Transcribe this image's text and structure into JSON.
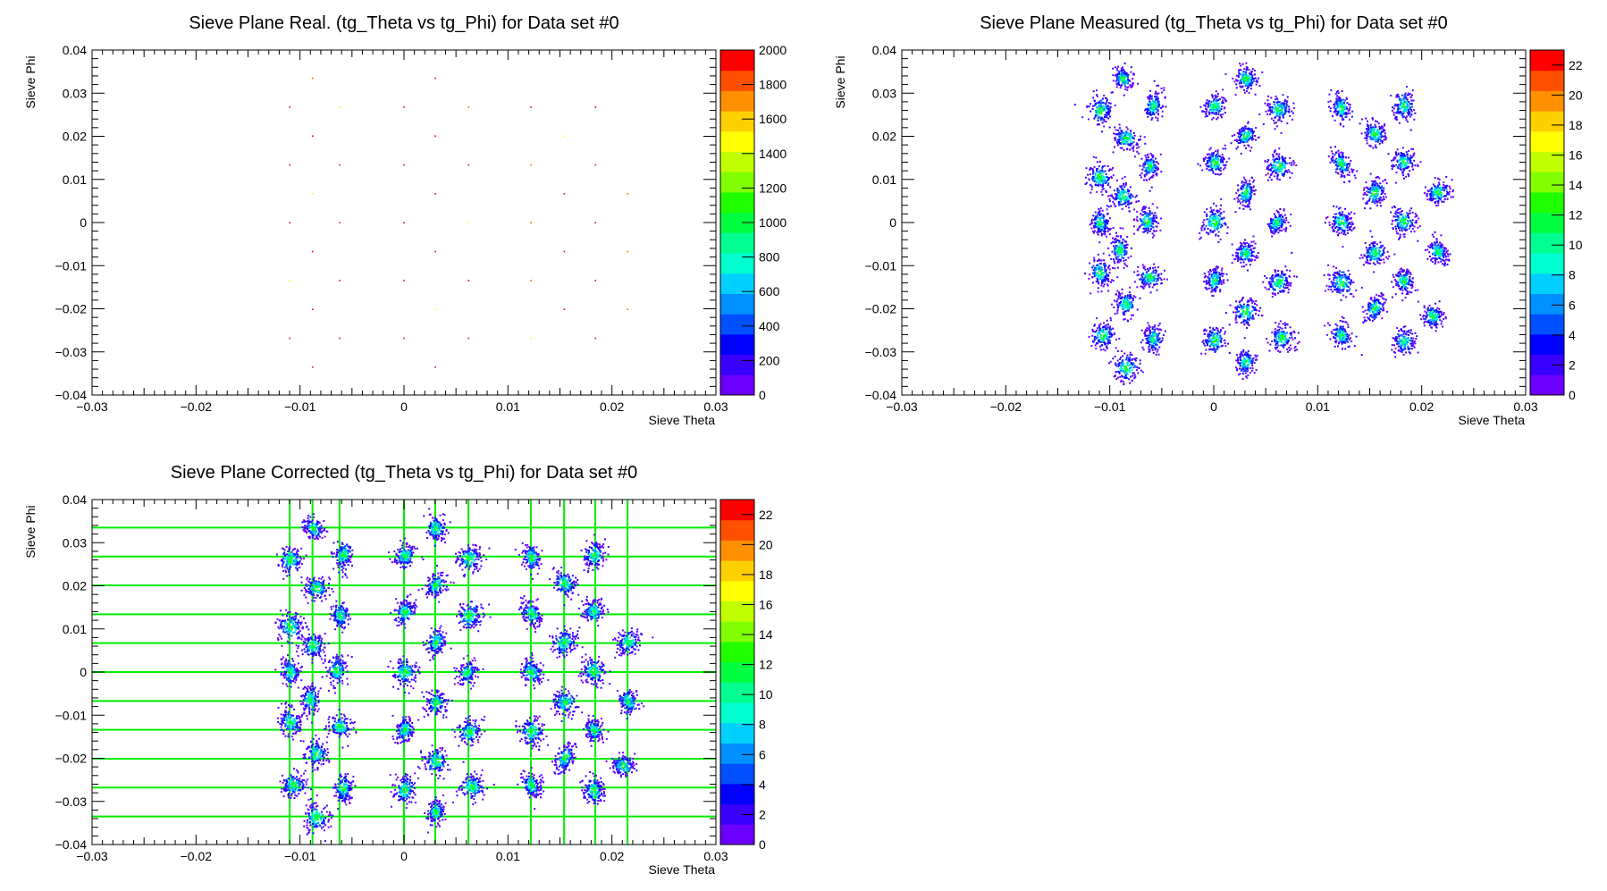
{
  "chart_data": [
    {
      "id": "real",
      "type": "heatmap",
      "title": "Sieve Plane Real. (tg_Theta vs tg_Phi) for Data set #0",
      "xlabel": "Sieve Theta",
      "ylabel": "Sieve Phi",
      "xlim": [
        -0.03,
        0.03
      ],
      "ylim": [
        -0.04,
        0.04
      ],
      "x_ticks": [
        "−0.03",
        "−0.02",
        "−0.01",
        "0",
        "0.01",
        "0.02",
        "0.03"
      ],
      "y_ticks": [
        "−0.04",
        "−0.03",
        "−0.02",
        "−0.01",
        "0",
        "0.01",
        "0.02",
        "0.03",
        "0.04"
      ],
      "z_range": [
        0,
        2000
      ],
      "z_ticks": [
        "0",
        "200",
        "400",
        "600",
        "800",
        "1000",
        "1200",
        "1400",
        "1600",
        "1800",
        "2000"
      ],
      "grid": false,
      "marker": "point",
      "holes": [
        [
          -0.0088,
          0.0335
        ],
        [
          0.003,
          0.0335
        ],
        [
          -0.011,
          0.0268
        ],
        [
          -0.0062,
          0.0268
        ],
        [
          0,
          0.0268
        ],
        [
          0.0062,
          0.0268
        ],
        [
          0.0122,
          0.0268
        ],
        [
          0.0184,
          0.0268
        ],
        [
          -0.0088,
          0.0201
        ],
        [
          0.003,
          0.0201
        ],
        [
          0.0154,
          0.0201
        ],
        [
          -0.011,
          0.0134
        ],
        [
          -0.0062,
          0.0134
        ],
        [
          0,
          0.0134
        ],
        [
          0.0062,
          0.0134
        ],
        [
          0.0122,
          0.0134
        ],
        [
          0.0184,
          0.0134
        ],
        [
          -0.0088,
          0.0067
        ],
        [
          0.003,
          0.0067
        ],
        [
          0.0154,
          0.0067
        ],
        [
          0.0215,
          0.0067
        ],
        [
          -0.011,
          0
        ],
        [
          -0.0062,
          0
        ],
        [
          0,
          0
        ],
        [
          0.0062,
          0
        ],
        [
          0.0122,
          0
        ],
        [
          0.0184,
          0
        ],
        [
          -0.0088,
          -0.0067
        ],
        [
          0.003,
          -0.0067
        ],
        [
          0.0154,
          -0.0067
        ],
        [
          0.0215,
          -0.0067
        ],
        [
          -0.011,
          -0.0134
        ],
        [
          -0.0062,
          -0.0134
        ],
        [
          0,
          -0.0134
        ],
        [
          0.0062,
          -0.0134
        ],
        [
          0.0122,
          -0.0134
        ],
        [
          0.0184,
          -0.0134
        ],
        [
          -0.0088,
          -0.0201
        ],
        [
          0.003,
          -0.0201
        ],
        [
          0.0154,
          -0.0201
        ],
        [
          0.0215,
          -0.0201
        ],
        [
          -0.011,
          -0.0268
        ],
        [
          -0.0062,
          -0.0268
        ],
        [
          0,
          -0.0268
        ],
        [
          0.0062,
          -0.0268
        ],
        [
          0.0122,
          -0.0268
        ],
        [
          0.0184,
          -0.0268
        ],
        [
          -0.0088,
          -0.0335
        ],
        [
          0.003,
          -0.0335
        ]
      ]
    },
    {
      "id": "measured",
      "type": "heatmap",
      "title": "Sieve Plane Measured (tg_Theta vs tg_Phi) for Data set #0",
      "xlabel": "Sieve Theta",
      "ylabel": "Sieve Phi",
      "xlim": [
        -0.03,
        0.03
      ],
      "ylim": [
        -0.04,
        0.04
      ],
      "x_ticks": [
        "−0.03",
        "−0.02",
        "−0.01",
        "0",
        "0.01",
        "0.02",
        "0.03"
      ],
      "y_ticks": [
        "−0.04",
        "−0.03",
        "−0.02",
        "−0.01",
        "0",
        "0.01",
        "0.02",
        "0.03",
        "0.04"
      ],
      "z_range": [
        0,
        23
      ],
      "z_ticks": [
        "0",
        "2",
        "4",
        "6",
        "8",
        "10",
        "12",
        "14",
        "16",
        "18",
        "20",
        "22"
      ],
      "grid": false,
      "marker": "cluster",
      "holes": [
        [
          -0.0088,
          0.0335
        ],
        [
          0.003,
          0.0335
        ],
        [
          -0.011,
          0.0262
        ],
        [
          -0.0059,
          0.0273
        ],
        [
          0,
          0.0271
        ],
        [
          0.0062,
          0.0265
        ],
        [
          0.0122,
          0.0268
        ],
        [
          0.0182,
          0.0273
        ],
        [
          -0.0085,
          0.0197
        ],
        [
          0.003,
          0.0203
        ],
        [
          0.0154,
          0.0208
        ],
        [
          -0.011,
          0.0107
        ],
        [
          -0.0062,
          0.0132
        ],
        [
          0,
          0.0141
        ],
        [
          0.0062,
          0.0132
        ],
        [
          0.0122,
          0.0138
        ],
        [
          0.0182,
          0.0143
        ],
        [
          -0.0088,
          0.0062
        ],
        [
          0.003,
          0.0071
        ],
        [
          0.0154,
          0.0071
        ],
        [
          0.0215,
          0.0071
        ],
        [
          -0.011,
          0.0002
        ],
        [
          -0.0065,
          0.0005
        ],
        [
          0,
          0.0002
        ],
        [
          0.006,
          0.0001
        ],
        [
          0.0122,
          0.0003
        ],
        [
          0.0182,
          0.0004
        ],
        [
          -0.0091,
          -0.0062
        ],
        [
          0.003,
          -0.0069
        ],
        [
          0.0154,
          -0.0069
        ],
        [
          0.0215,
          -0.0066
        ],
        [
          -0.011,
          -0.0114
        ],
        [
          -0.0062,
          -0.0125
        ],
        [
          0,
          -0.0132
        ],
        [
          0.0062,
          -0.0137
        ],
        [
          0.0122,
          -0.0137
        ],
        [
          0.0182,
          -0.0134
        ],
        [
          -0.0085,
          -0.0187
        ],
        [
          0.003,
          -0.0205
        ],
        [
          0.0154,
          -0.0197
        ],
        [
          0.021,
          -0.0215
        ],
        [
          -0.0107,
          -0.026
        ],
        [
          -0.0059,
          -0.0268
        ],
        [
          0,
          -0.0271
        ],
        [
          0.0065,
          -0.0265
        ],
        [
          0.0122,
          -0.026
        ],
        [
          0.0182,
          -0.0273
        ],
        [
          -0.0085,
          -0.0335
        ],
        [
          0.003,
          -0.0322
        ]
      ]
    },
    {
      "id": "corrected",
      "type": "heatmap",
      "title": "Sieve Plane Corrected (tg_Theta vs tg_Phi) for Data set #0",
      "xlabel": "Sieve Theta",
      "ylabel": "Sieve Phi",
      "xlim": [
        -0.03,
        0.03
      ],
      "ylim": [
        -0.04,
        0.04
      ],
      "x_ticks": [
        "−0.03",
        "−0.02",
        "−0.01",
        "0",
        "0.01",
        "0.02",
        "0.03"
      ],
      "y_ticks": [
        "−0.04",
        "−0.03",
        "−0.02",
        "−0.01",
        "0",
        "0.01",
        "0.02",
        "0.03",
        "0.04"
      ],
      "z_range": [
        0,
        23
      ],
      "z_ticks": [
        "0",
        "2",
        "4",
        "6",
        "8",
        "10",
        "12",
        "14",
        "16",
        "18",
        "20",
        "22"
      ],
      "grid": false,
      "marker": "cluster",
      "guide_lines_color": "#00ee00",
      "guide_x": [
        -0.011,
        -0.0088,
        -0.0062,
        0,
        0.003,
        0.0062,
        0.0122,
        0.0154,
        0.0184,
        0.0215
      ],
      "guide_y": [
        -0.0335,
        -0.0268,
        -0.0201,
        -0.0134,
        -0.0067,
        0,
        0.0067,
        0.0134,
        0.0201,
        0.0268,
        0.0335
      ],
      "holes": [
        [
          -0.0088,
          0.0335
        ],
        [
          0.003,
          0.0335
        ],
        [
          -0.011,
          0.0262
        ],
        [
          -0.0059,
          0.0273
        ],
        [
          0,
          0.0271
        ],
        [
          0.0062,
          0.0265
        ],
        [
          0.0122,
          0.0268
        ],
        [
          0.0182,
          0.0273
        ],
        [
          -0.0085,
          0.0197
        ],
        [
          0.003,
          0.0203
        ],
        [
          0.0154,
          0.0208
        ],
        [
          -0.011,
          0.0107
        ],
        [
          -0.0062,
          0.0132
        ],
        [
          0,
          0.0141
        ],
        [
          0.0062,
          0.0132
        ],
        [
          0.0122,
          0.0138
        ],
        [
          0.0182,
          0.0143
        ],
        [
          -0.0088,
          0.0062
        ],
        [
          0.003,
          0.0071
        ],
        [
          0.0154,
          0.0071
        ],
        [
          0.0215,
          0.0071
        ],
        [
          -0.011,
          0.0002
        ],
        [
          -0.0065,
          0.0005
        ],
        [
          0,
          0.0002
        ],
        [
          0.006,
          0.0001
        ],
        [
          0.0122,
          0.0003
        ],
        [
          0.0182,
          0.0004
        ],
        [
          -0.0091,
          -0.0062
        ],
        [
          0.003,
          -0.0069
        ],
        [
          0.0154,
          -0.0069
        ],
        [
          0.0215,
          -0.0066
        ],
        [
          -0.011,
          -0.0114
        ],
        [
          -0.0062,
          -0.0125
        ],
        [
          0,
          -0.0132
        ],
        [
          0.0062,
          -0.0137
        ],
        [
          0.0122,
          -0.0137
        ],
        [
          0.0182,
          -0.0134
        ],
        [
          -0.0085,
          -0.0187
        ],
        [
          0.003,
          -0.0205
        ],
        [
          0.0154,
          -0.0197
        ],
        [
          0.021,
          -0.0215
        ],
        [
          -0.0107,
          -0.026
        ],
        [
          -0.0059,
          -0.0268
        ],
        [
          0,
          -0.0271
        ],
        [
          0.0065,
          -0.0265
        ],
        [
          0.0122,
          -0.026
        ],
        [
          0.0182,
          -0.0273
        ],
        [
          -0.0085,
          -0.0335
        ],
        [
          0.003,
          -0.0322
        ]
      ]
    }
  ],
  "palette": [
    "#6b00ff",
    "#3a00ff",
    "#0000ff",
    "#0050ff",
    "#0090ff",
    "#00d0ff",
    "#00ffd0",
    "#00ff90",
    "#00ff40",
    "#20ff00",
    "#80ff00",
    "#c0ff00",
    "#ffff00",
    "#ffd000",
    "#ff9000",
    "#ff5000",
    "#ff0000"
  ]
}
